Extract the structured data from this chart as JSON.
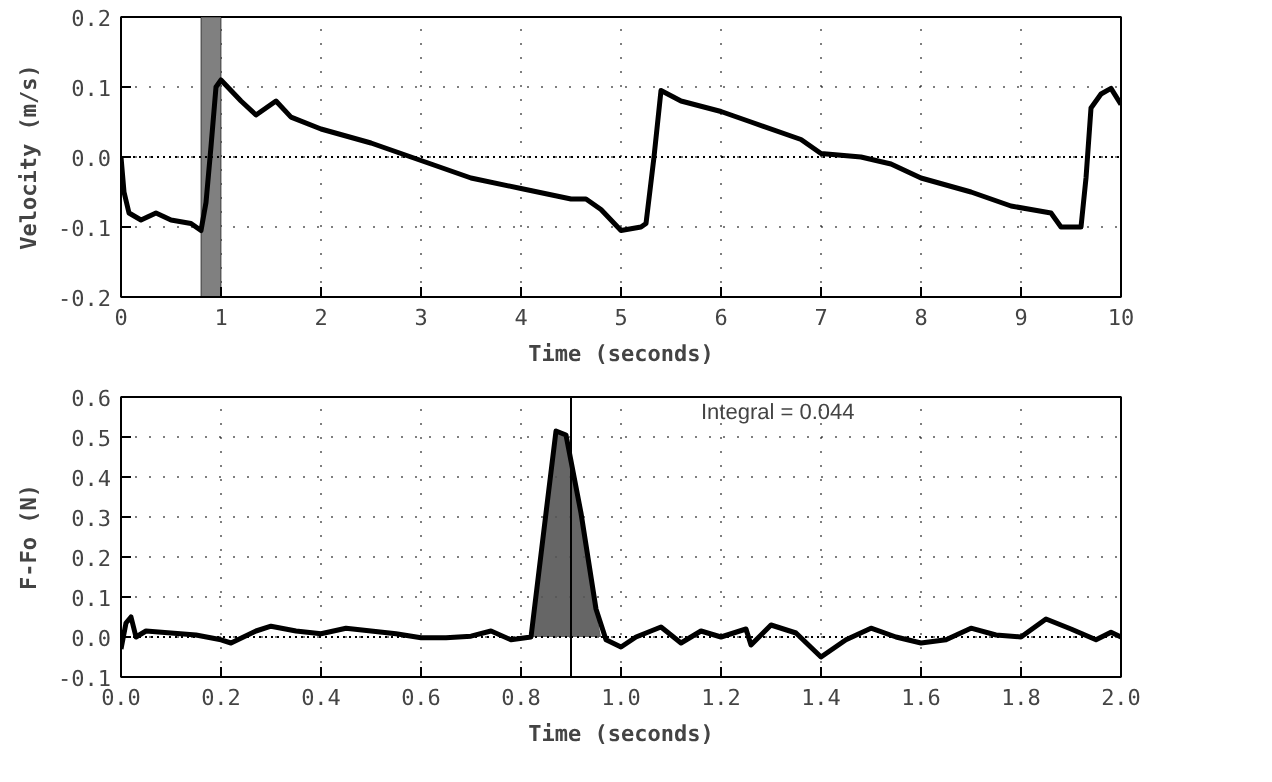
{
  "chart_data": [
    {
      "type": "line",
      "xlabel": "Time (seconds)",
      "ylabel": "Velocity (m/s)",
      "xlim": [
        0,
        10
      ],
      "ylim": [
        -0.2,
        0.2
      ],
      "xticks": [
        0,
        1,
        2,
        3,
        4,
        5,
        6,
        7,
        8,
        9,
        10
      ],
      "yticks": [
        {
          "value": -0.2,
          "label": "-0.2"
        },
        {
          "value": -0.1,
          "label": "-0.1"
        },
        {
          "value": 0,
          "label": "0.0"
        },
        {
          "value": 0.1,
          "label": "0.1"
        },
        {
          "value": 0.2,
          "label": "0.2"
        }
      ],
      "grid": true,
      "line_style": "solid",
      "series": [
        {
          "color": "#000000",
          "x": [
            0,
            0.03,
            0.08,
            0.2,
            0.35,
            0.5,
            0.7,
            0.8,
            0.85,
            0.9,
            0.95,
            1.0,
            1.2,
            1.35,
            1.55,
            1.7,
            2.0,
            2.5,
            3.0,
            3.5,
            4.0,
            4.5,
            4.65,
            4.8,
            5.0,
            5.2,
            5.25,
            5.33,
            5.4,
            5.6,
            6.0,
            6.3,
            6.8,
            7.0,
            7.4,
            7.7,
            8.0,
            8.5,
            8.9,
            9.3,
            9.4,
            9.6,
            9.65,
            9.7,
            9.8,
            9.9,
            10.0
          ],
          "values": [
            0.0,
            -0.05,
            -0.08,
            -0.09,
            -0.08,
            -0.09,
            -0.095,
            -0.105,
            -0.065,
            0.015,
            0.1,
            0.11,
            0.08,
            0.06,
            0.08,
            0.057,
            0.04,
            0.02,
            -0.005,
            -0.03,
            -0.045,
            -0.06,
            -0.06,
            -0.075,
            -0.105,
            -0.1,
            -0.095,
            0.0,
            0.095,
            0.08,
            0.065,
            0.05,
            0.025,
            0.005,
            0.0,
            -0.01,
            -0.03,
            -0.05,
            -0.07,
            -0.08,
            -0.1,
            -0.1,
            -0.03,
            0.07,
            0.09,
            0.098,
            0.075
          ]
        }
      ],
      "ref_lines": [
        {
          "axis": "y",
          "value": 0,
          "line_style": "dotted",
          "color": "#000000"
        }
      ],
      "bands": [
        {
          "axis": "x",
          "from": 0.8,
          "to": 1.0,
          "color": "#808080"
        }
      ]
    },
    {
      "type": "line",
      "xlabel": "Time (seconds)",
      "ylabel": "F-Fo (N)",
      "xlim": [
        0,
        2
      ],
      "ylim": [
        -0.1,
        0.6
      ],
      "xticks": [
        {
          "value": 0,
          "label": "0.0"
        },
        {
          "value": 0.2,
          "label": "0.2"
        },
        {
          "value": 0.4,
          "label": "0.4"
        },
        {
          "value": 0.6,
          "label": "0.6"
        },
        {
          "value": 0.8,
          "label": "0.8"
        },
        {
          "value": 1.0,
          "label": "1.0"
        },
        {
          "value": 1.2,
          "label": "1.2"
        },
        {
          "value": 1.4,
          "label": "1.4"
        },
        {
          "value": 1.6,
          "label": "1.6"
        },
        {
          "value": 1.8,
          "label": "1.8"
        },
        {
          "value": 2.0,
          "label": "2.0"
        }
      ],
      "yticks": [
        {
          "value": -0.1,
          "label": "-0.1"
        },
        {
          "value": 0,
          "label": "0.0"
        },
        {
          "value": 0.1,
          "label": "0.1"
        },
        {
          "value": 0.2,
          "label": "0.2"
        },
        {
          "value": 0.3,
          "label": "0.3"
        },
        {
          "value": 0.4,
          "label": "0.4"
        },
        {
          "value": 0.5,
          "label": "0.5"
        },
        {
          "value": 0.6,
          "label": "0.6"
        }
      ],
      "grid": true,
      "line_style": "solid",
      "annotations": [
        "Integral = 0.044"
      ],
      "series": [
        {
          "type": "area",
          "color": "#555555",
          "x": [
            0.82,
            0.85,
            0.87,
            0.89,
            0.92,
            0.95,
            0.96
          ],
          "values": [
            0.0,
            0.31,
            0.515,
            0.505,
            0.31,
            0.07,
            0.0
          ]
        },
        {
          "color": "#000000",
          "x": [
            0,
            0.01,
            0.02,
            0.03,
            0.05,
            0.1,
            0.15,
            0.2,
            0.22,
            0.27,
            0.3,
            0.35,
            0.4,
            0.45,
            0.5,
            0.55,
            0.6,
            0.65,
            0.7,
            0.74,
            0.78,
            0.82,
            0.85,
            0.87,
            0.89,
            0.92,
            0.95,
            0.97,
            1.0,
            1.03,
            1.08,
            1.12,
            1.16,
            1.2,
            1.25,
            1.26,
            1.3,
            1.35,
            1.4,
            1.45,
            1.5,
            1.55,
            1.6,
            1.65,
            1.7,
            1.75,
            1.8,
            1.85,
            1.9,
            1.95,
            1.98,
            2.0
          ],
          "values": [
            -0.03,
            0.035,
            0.05,
            0.0,
            0.015,
            0.01,
            0.005,
            -0.007,
            -0.015,
            0.015,
            0.027,
            0.015,
            0.008,
            0.022,
            0.015,
            0.008,
            -0.002,
            -0.002,
            0.002,
            0.015,
            -0.007,
            0.0,
            0.31,
            0.515,
            0.505,
            0.31,
            0.07,
            -0.007,
            -0.025,
            0.0,
            0.025,
            -0.015,
            0.015,
            0.0,
            0.02,
            -0.02,
            0.03,
            0.01,
            -0.05,
            -0.007,
            0.022,
            0.0,
            -0.015,
            -0.007,
            0.022,
            0.005,
            0.0,
            0.045,
            0.02,
            -0.007,
            0.012,
            0.0
          ]
        }
      ],
      "ref_lines": [
        {
          "axis": "y",
          "value": 0,
          "line_style": "dotted",
          "color": "#000000"
        },
        {
          "axis": "x",
          "value": 0.9,
          "line_style": "solid",
          "color": "#000000"
        }
      ]
    }
  ]
}
